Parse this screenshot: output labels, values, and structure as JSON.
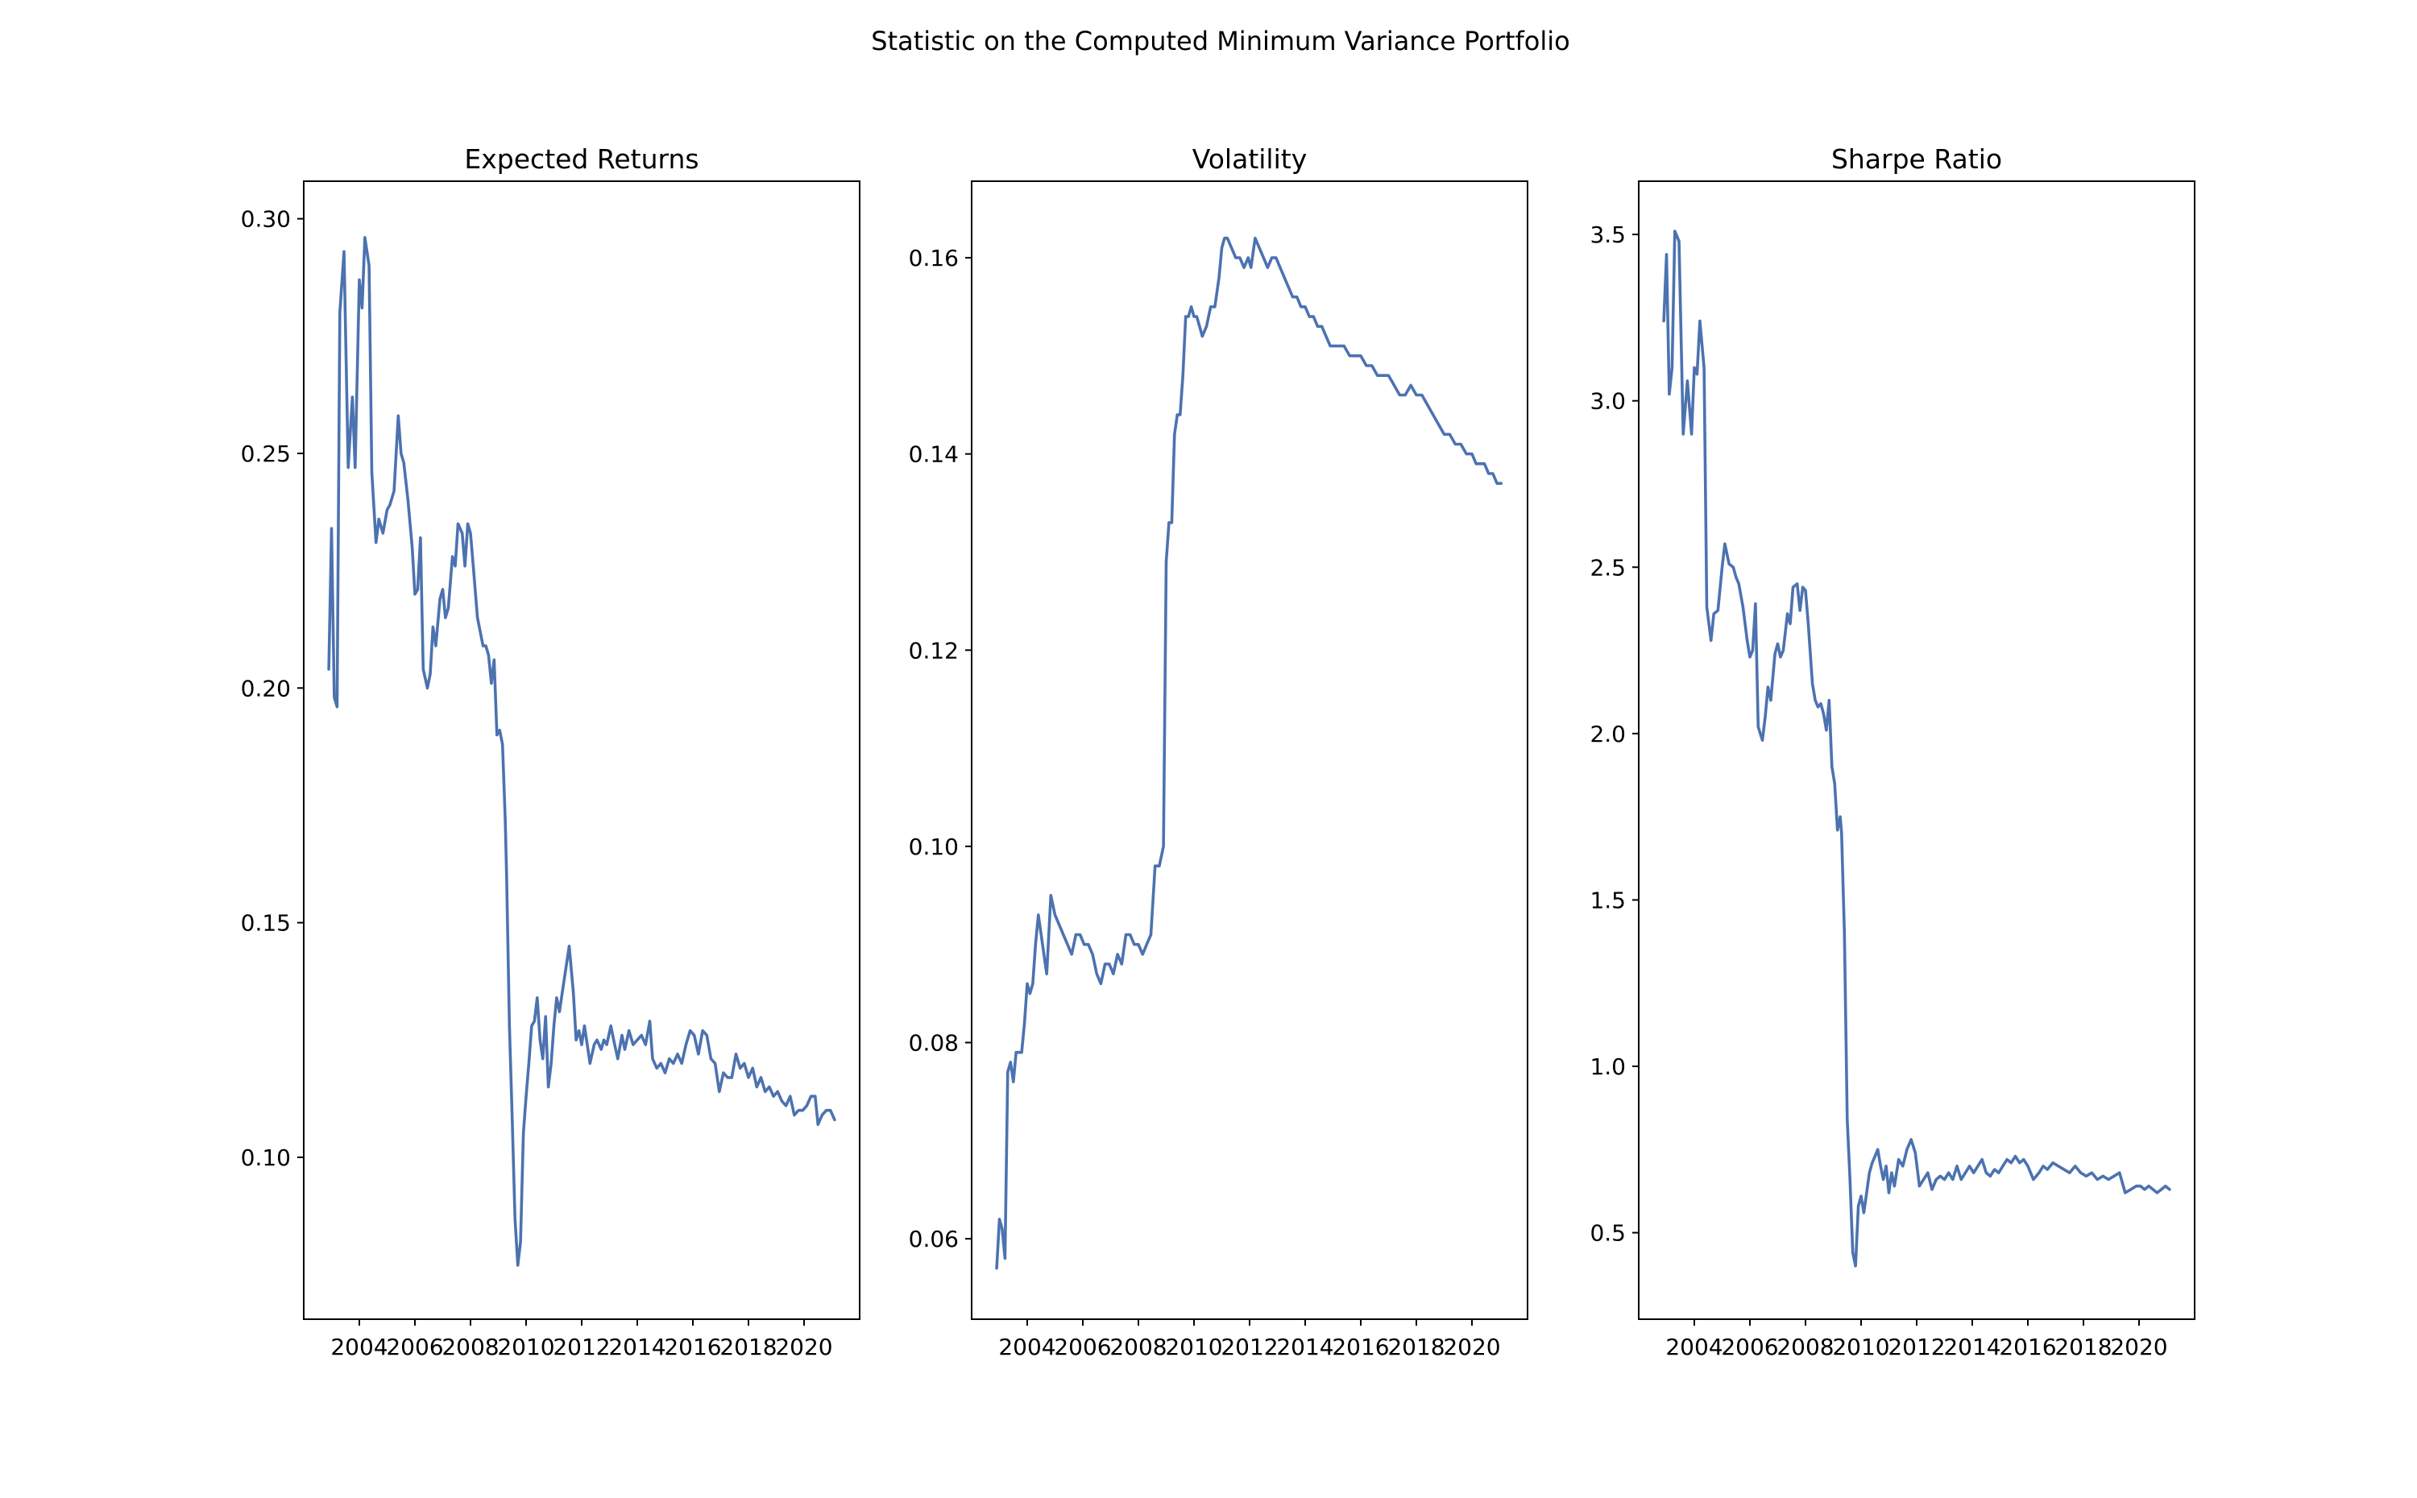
{
  "figure": {
    "suptitle": "Statistic on the Computed Minimum Variance Portfolio",
    "line_color": "#4c72b0"
  },
  "chart_data": [
    {
      "type": "line",
      "title": "Expected Returns",
      "xlabel": "",
      "ylabel": "",
      "xlim": [
        2002.0,
        2022.0
      ],
      "ylim": [
        0.0655,
        0.308
      ],
      "xticks": [
        2004,
        2006,
        2008,
        2010,
        2012,
        2014,
        2016,
        2018,
        2020
      ],
      "xtick_labels": [
        "2004",
        "2006",
        "2008",
        "2010",
        "2012",
        "2014",
        "2016",
        "2018",
        "2020"
      ],
      "yticks": [
        0.1,
        0.15,
        0.2,
        0.25,
        0.3
      ],
      "ytick_labels": [
        "0.10",
        "0.15",
        "0.20",
        "0.25",
        "0.30"
      ],
      "grid": false,
      "series": [
        {
          "x": [
            2002.9,
            2003.0,
            2003.1,
            2003.2,
            2003.3,
            2003.45,
            2003.6,
            2003.75,
            2003.85,
            2004.0,
            2004.1,
            2004.2,
            2004.35,
            2004.45,
            2004.6,
            2004.7,
            2004.85,
            2005.0,
            2005.1,
            2005.25,
            2005.4,
            2005.5,
            2005.6,
            2005.75,
            2005.9,
            2006.0,
            2006.1,
            2006.2,
            2006.3,
            2006.45,
            2006.55,
            2006.65,
            2006.75,
            2006.9,
            2007.0,
            2007.1,
            2007.2,
            2007.35,
            2007.45,
            2007.55,
            2007.7,
            2007.8,
            2007.9,
            2008.0,
            2008.1,
            2008.25,
            2008.35,
            2008.45,
            2008.55,
            2008.65,
            2008.75,
            2008.85,
            2008.95,
            2009.05,
            2009.15,
            2009.25,
            2009.3,
            2009.4,
            2009.5,
            2009.6,
            2009.7,
            2009.8,
            2009.9,
            2010.0,
            2010.1,
            2010.2,
            2010.3,
            2010.4,
            2010.5,
            2010.6,
            2010.7,
            2010.8,
            2010.9,
            2011.0,
            2011.1,
            2011.2,
            2011.3,
            2011.45,
            2011.55,
            2011.7,
            2011.8,
            2011.9,
            2012.0,
            2012.1,
            2012.2,
            2012.3,
            2012.45,
            2012.55,
            2012.7,
            2012.8,
            2012.9,
            2013.05,
            2013.15,
            2013.3,
            2013.45,
            2013.55,
            2013.7,
            2013.85,
            2014.0,
            2014.15,
            2014.3,
            2014.45,
            2014.55,
            2014.7,
            2014.85,
            2015.0,
            2015.15,
            2015.3,
            2015.45,
            2015.6,
            2015.75,
            2015.9,
            2016.05,
            2016.2,
            2016.35,
            2016.5,
            2016.65,
            2016.8,
            2016.95,
            2017.1,
            2017.25,
            2017.4,
            2017.55,
            2017.7,
            2017.85,
            2018.0,
            2018.15,
            2018.3,
            2018.45,
            2018.6,
            2018.75,
            2018.9,
            2019.05,
            2019.2,
            2019.35,
            2019.5,
            2019.65,
            2019.8,
            2019.95,
            2020.1,
            2020.25,
            2020.4,
            2020.5,
            2020.65,
            2020.8,
            2020.95,
            2021.1
          ],
          "y": [
            0.204,
            0.234,
            0.198,
            0.196,
            0.28,
            0.293,
            0.247,
            0.262,
            0.247,
            0.287,
            0.281,
            0.296,
            0.29,
            0.246,
            0.231,
            0.236,
            0.233,
            0.238,
            0.239,
            0.242,
            0.258,
            0.25,
            0.248,
            0.24,
            0.23,
            0.22,
            0.221,
            0.232,
            0.204,
            0.2,
            0.203,
            0.213,
            0.209,
            0.219,
            0.221,
            0.215,
            0.217,
            0.228,
            0.226,
            0.235,
            0.233,
            0.226,
            0.235,
            0.233,
            0.226,
            0.215,
            0.212,
            0.209,
            0.209,
            0.207,
            0.201,
            0.206,
            0.19,
            0.191,
            0.188,
            0.172,
            0.16,
            0.128,
            0.108,
            0.087,
            0.077,
            0.082,
            0.105,
            0.113,
            0.12,
            0.128,
            0.129,
            0.134,
            0.125,
            0.121,
            0.13,
            0.115,
            0.12,
            0.128,
            0.134,
            0.131,
            0.135,
            0.141,
            0.145,
            0.135,
            0.125,
            0.127,
            0.124,
            0.128,
            0.124,
            0.12,
            0.124,
            0.125,
            0.123,
            0.125,
            0.124,
            0.128,
            0.125,
            0.121,
            0.126,
            0.123,
            0.127,
            0.124,
            0.125,
            0.126,
            0.124,
            0.129,
            0.121,
            0.119,
            0.12,
            0.118,
            0.121,
            0.12,
            0.122,
            0.12,
            0.124,
            0.127,
            0.126,
            0.122,
            0.127,
            0.126,
            0.121,
            0.12,
            0.114,
            0.118,
            0.117,
            0.117,
            0.122,
            0.119,
            0.12,
            0.117,
            0.119,
            0.115,
            0.117,
            0.114,
            0.115,
            0.113,
            0.114,
            0.112,
            0.111,
            0.113,
            0.109,
            0.11,
            0.11,
            0.111,
            0.113,
            0.113,
            0.107,
            0.109,
            0.11,
            0.11,
            0.108
          ]
        }
      ]
    },
    {
      "type": "line",
      "title": "Volatility",
      "xlabel": "",
      "ylabel": "",
      "xlim": [
        2002.0,
        2022.0
      ],
      "ylim": [
        0.0518,
        0.1678
      ],
      "xticks": [
        2004,
        2006,
        2008,
        2010,
        2012,
        2014,
        2016,
        2018,
        2020
      ],
      "xtick_labels": [
        "2004",
        "2006",
        "2008",
        "2010",
        "2012",
        "2014",
        "2016",
        "2018",
        "2020"
      ],
      "yticks": [
        0.06,
        0.08,
        0.1,
        0.12,
        0.14,
        0.16
      ],
      "ytick_labels": [
        "0.06",
        "0.08",
        "0.10",
        "0.12",
        "0.14",
        "0.16"
      ],
      "grid": false,
      "series": [
        {
          "x": [
            2002.9,
            2003.0,
            2003.1,
            2003.2,
            2003.3,
            2003.4,
            2003.5,
            2003.6,
            2003.7,
            2003.8,
            2003.9,
            2004.0,
            2004.1,
            2004.2,
            2004.3,
            2004.4,
            2004.5,
            2004.6,
            2004.7,
            2004.85,
            2005.0,
            2005.15,
            2005.3,
            2005.45,
            2005.6,
            2005.75,
            2005.9,
            2006.05,
            2006.2,
            2006.35,
            2006.5,
            2006.65,
            2006.8,
            2006.95,
            2007.1,
            2007.25,
            2007.4,
            2007.55,
            2007.7,
            2007.85,
            2008.0,
            2008.15,
            2008.3,
            2008.45,
            2008.6,
            2008.75,
            2008.9,
            2009.0,
            2009.1,
            2009.2,
            2009.3,
            2009.4,
            2009.5,
            2009.6,
            2009.7,
            2009.8,
            2009.9,
            2010.0,
            2010.1,
            2010.2,
            2010.3,
            2010.45,
            2010.6,
            2010.75,
            2010.9,
            2011.0,
            2011.1,
            2011.2,
            2011.35,
            2011.5,
            2011.65,
            2011.8,
            2011.95,
            2012.05,
            2012.2,
            2012.35,
            2012.5,
            2012.65,
            2012.8,
            2012.95,
            2013.1,
            2013.25,
            2013.4,
            2013.55,
            2013.7,
            2013.85,
            2014.0,
            2014.15,
            2014.3,
            2014.45,
            2014.6,
            2014.75,
            2014.9,
            2015.05,
            2015.2,
            2015.4,
            2015.6,
            2015.8,
            2016.0,
            2016.2,
            2016.4,
            2016.6,
            2016.8,
            2017.0,
            2017.2,
            2017.4,
            2017.6,
            2017.8,
            2018.0,
            2018.2,
            2018.4,
            2018.6,
            2018.8,
            2019.0,
            2019.2,
            2019.4,
            2019.6,
            2019.8,
            2020.0,
            2020.15,
            2020.3,
            2020.45,
            2020.6,
            2020.75,
            2020.9,
            2021.05
          ],
          "y": [
            0.057,
            0.062,
            0.061,
            0.058,
            0.077,
            0.078,
            0.076,
            0.079,
            0.079,
            0.079,
            0.082,
            0.086,
            0.085,
            0.086,
            0.09,
            0.093,
            0.091,
            0.089,
            0.087,
            0.095,
            0.093,
            0.092,
            0.091,
            0.09,
            0.089,
            0.091,
            0.091,
            0.09,
            0.09,
            0.089,
            0.087,
            0.086,
            0.088,
            0.088,
            0.087,
            0.089,
            0.088,
            0.091,
            0.091,
            0.09,
            0.09,
            0.089,
            0.09,
            0.091,
            0.098,
            0.098,
            0.1,
            0.129,
            0.133,
            0.133,
            0.142,
            0.144,
            0.144,
            0.148,
            0.154,
            0.154,
            0.155,
            0.154,
            0.154,
            0.153,
            0.152,
            0.153,
            0.155,
            0.155,
            0.158,
            0.161,
            0.162,
            0.162,
            0.161,
            0.16,
            0.16,
            0.159,
            0.16,
            0.159,
            0.162,
            0.161,
            0.16,
            0.159,
            0.16,
            0.16,
            0.159,
            0.158,
            0.157,
            0.156,
            0.156,
            0.155,
            0.155,
            0.154,
            0.154,
            0.153,
            0.153,
            0.152,
            0.151,
            0.151,
            0.151,
            0.151,
            0.15,
            0.15,
            0.15,
            0.149,
            0.149,
            0.148,
            0.148,
            0.148,
            0.147,
            0.146,
            0.146,
            0.147,
            0.146,
            0.146,
            0.145,
            0.144,
            0.143,
            0.142,
            0.142,
            0.141,
            0.141,
            0.14,
            0.14,
            0.139,
            0.139,
            0.139,
            0.138,
            0.138,
            0.137,
            0.137
          ]
        }
      ]
    },
    {
      "type": "line",
      "title": "Sharpe Ratio",
      "xlabel": "",
      "ylabel": "",
      "xlim": [
        2002.0,
        2022.0
      ],
      "ylim": [
        0.24,
        3.66
      ],
      "xticks": [
        2004,
        2006,
        2008,
        2010,
        2012,
        2014,
        2016,
        2018,
        2020
      ],
      "xtick_labels": [
        "2004",
        "2006",
        "2008",
        "2010",
        "2012",
        "2014",
        "2016",
        "2018",
        "2020"
      ],
      "yticks": [
        0.5,
        1.0,
        1.5,
        2.0,
        2.5,
        3.0,
        3.5
      ],
      "ytick_labels": [
        "0.5",
        "1.0",
        "1.5",
        "2.0",
        "2.5",
        "3.0",
        "3.5"
      ],
      "grid": false,
      "series": [
        {
          "x": [
            2002.9,
            2003.0,
            2003.1,
            2003.2,
            2003.3,
            2003.45,
            2003.6,
            2003.75,
            2003.9,
            2004.0,
            2004.1,
            2004.2,
            2004.35,
            2004.45,
            2004.6,
            2004.7,
            2004.85,
            2005.0,
            2005.1,
            2005.25,
            2005.4,
            2005.5,
            2005.6,
            2005.75,
            2005.9,
            2006.0,
            2006.1,
            2006.2,
            2006.3,
            2006.45,
            2006.55,
            2006.65,
            2006.75,
            2006.9,
            2007.0,
            2007.1,
            2007.2,
            2007.35,
            2007.45,
            2007.55,
            2007.7,
            2007.8,
            2007.9,
            2008.0,
            2008.1,
            2008.25,
            2008.35,
            2008.45,
            2008.55,
            2008.65,
            2008.75,
            2008.85,
            2008.95,
            2009.05,
            2009.15,
            2009.25,
            2009.3,
            2009.4,
            2009.5,
            2009.6,
            2009.7,
            2009.8,
            2009.9,
            2010.0,
            2010.1,
            2010.2,
            2010.3,
            2010.4,
            2010.5,
            2010.6,
            2010.7,
            2010.8,
            2010.9,
            2011.0,
            2011.1,
            2011.2,
            2011.35,
            2011.5,
            2011.65,
            2011.8,
            2011.95,
            2012.1,
            2012.25,
            2012.4,
            2012.55,
            2012.7,
            2012.85,
            2013.0,
            2013.15,
            2013.3,
            2013.45,
            2013.6,
            2013.75,
            2013.9,
            2014.05,
            2014.2,
            2014.35,
            2014.5,
            2014.65,
            2014.8,
            2014.95,
            2015.1,
            2015.25,
            2015.4,
            2015.55,
            2015.7,
            2015.85,
            2016.0,
            2016.2,
            2016.4,
            2016.55,
            2016.7,
            2016.9,
            2017.1,
            2017.3,
            2017.5,
            2017.7,
            2017.9,
            2018.1,
            2018.3,
            2018.5,
            2018.7,
            2018.9,
            2019.1,
            2019.3,
            2019.5,
            2019.7,
            2019.9,
            2020.05,
            2020.2,
            2020.35,
            2020.5,
            2020.65,
            2020.8,
            2020.95,
            2021.1
          ],
          "y": [
            3.24,
            3.44,
            3.02,
            3.1,
            3.51,
            3.48,
            2.9,
            3.06,
            2.9,
            3.1,
            3.08,
            3.24,
            3.1,
            2.38,
            2.28,
            2.36,
            2.37,
            2.5,
            2.57,
            2.51,
            2.5,
            2.47,
            2.45,
            2.38,
            2.28,
            2.23,
            2.25,
            2.39,
            2.02,
            1.98,
            2.05,
            2.14,
            2.1,
            2.24,
            2.27,
            2.23,
            2.25,
            2.36,
            2.33,
            2.44,
            2.45,
            2.37,
            2.44,
            2.43,
            2.33,
            2.15,
            2.1,
            2.08,
            2.09,
            2.06,
            2.01,
            2.1,
            1.9,
            1.85,
            1.71,
            1.75,
            1.7,
            1.4,
            0.84,
            0.66,
            0.44,
            0.4,
            0.58,
            0.61,
            0.56,
            0.62,
            0.68,
            0.71,
            0.73,
            0.75,
            0.7,
            0.66,
            0.7,
            0.62,
            0.68,
            0.64,
            0.72,
            0.7,
            0.75,
            0.78,
            0.74,
            0.64,
            0.66,
            0.68,
            0.63,
            0.66,
            0.67,
            0.66,
            0.68,
            0.66,
            0.7,
            0.66,
            0.68,
            0.7,
            0.68,
            0.7,
            0.72,
            0.68,
            0.67,
            0.69,
            0.68,
            0.7,
            0.72,
            0.71,
            0.73,
            0.71,
            0.72,
            0.7,
            0.66,
            0.68,
            0.7,
            0.69,
            0.71,
            0.7,
            0.69,
            0.68,
            0.7,
            0.68,
            0.67,
            0.68,
            0.66,
            0.67,
            0.66,
            0.67,
            0.68,
            0.62,
            0.63,
            0.64,
            0.64,
            0.63,
            0.64,
            0.63,
            0.62,
            0.63,
            0.64,
            0.63
          ]
        }
      ]
    }
  ]
}
